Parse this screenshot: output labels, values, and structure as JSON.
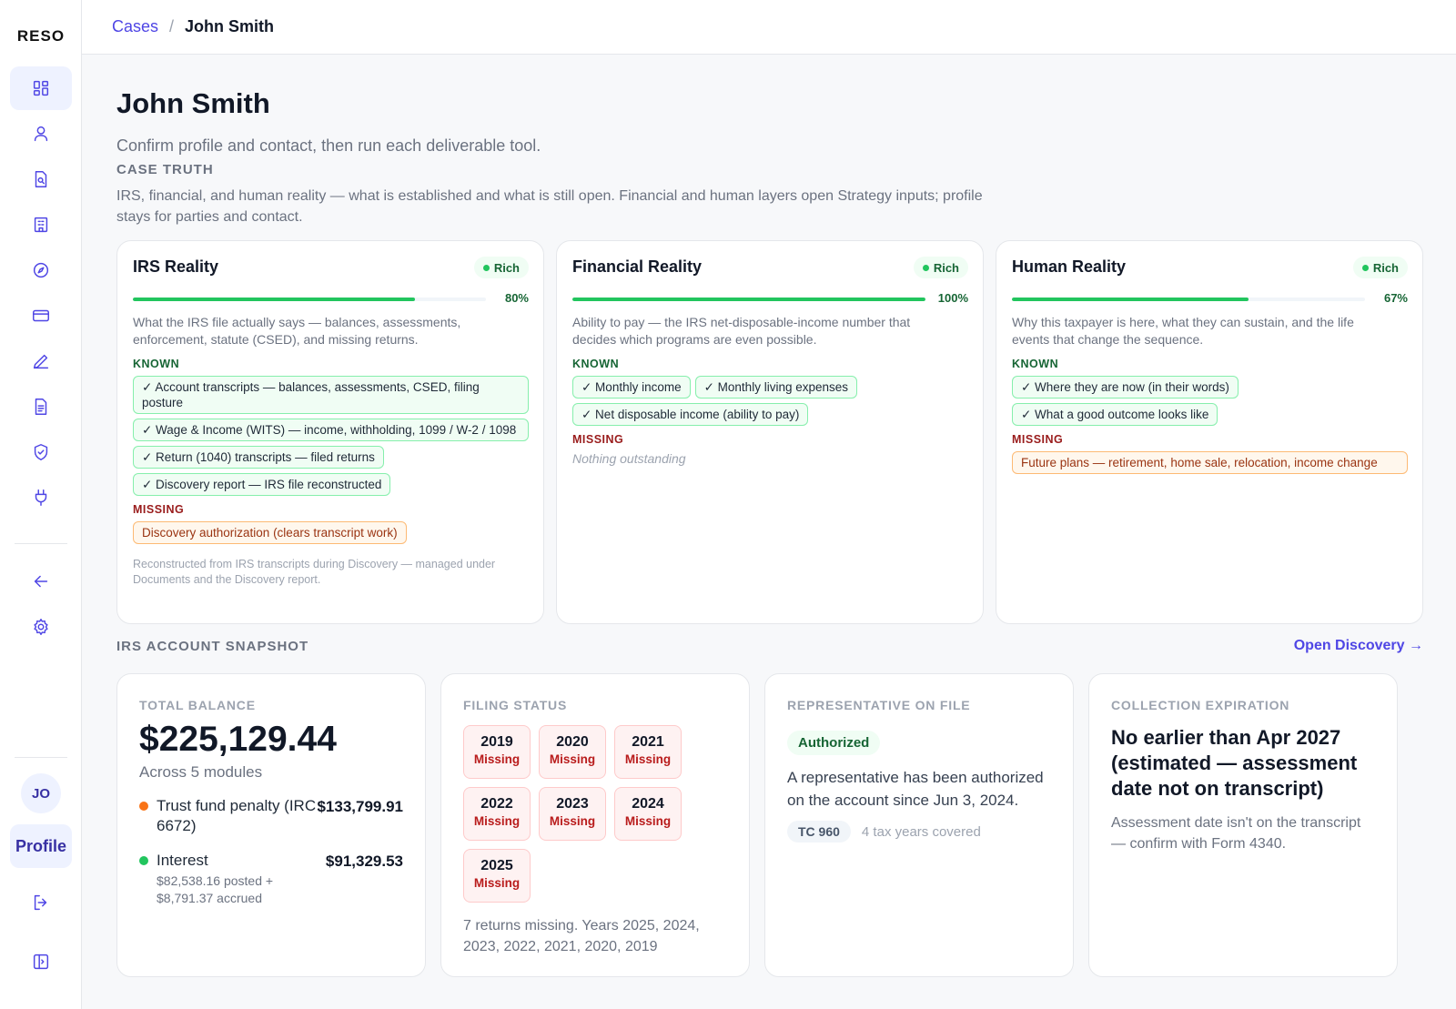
{
  "app": {
    "logo": "RESO"
  },
  "sidebar": {
    "nav": [
      {
        "icon": "dashboard-icon"
      },
      {
        "icon": "user-icon"
      },
      {
        "icon": "document-search-icon"
      },
      {
        "icon": "building-icon"
      },
      {
        "icon": "compass-icon"
      },
      {
        "icon": "credit-card-icon"
      },
      {
        "icon": "pen-icon"
      },
      {
        "icon": "document-text-icon"
      },
      {
        "icon": "shield-check-icon"
      },
      {
        "icon": "plug-icon"
      },
      {
        "icon": "arrow-left-icon"
      },
      {
        "icon": "settings-icon"
      }
    ],
    "avatar_initials": "JO",
    "profile_label": "Profile"
  },
  "breadcrumb": {
    "parent": "Cases",
    "separator": "/",
    "current": "John Smith"
  },
  "page": {
    "title": "John Smith",
    "subtitle": "Confirm profile and contact, then run each deliverable tool.",
    "case_truth_label": "CASE TRUTH",
    "case_truth_desc": "IRS, financial, and human reality — what is established and what is still open. Financial and human layers open Strategy inputs; profile stays for parties and contact."
  },
  "reality": {
    "known_label": "KNOWN",
    "missing_label": "MISSING",
    "irs": {
      "title": "IRS Reality",
      "badge": "Rich",
      "progress": 0.8,
      "pct_label": "80%",
      "desc": "What the IRS file actually says — balances, assessments, enforcement, statute (CSED), and missing returns.",
      "known": [
        "✓ Account transcripts — balances, assessments, CSED, filing posture",
        "✓ Wage & Income (WITS) — income, withholding, 1099 / W-2 / 1098",
        "✓ Return (1040) transcripts — filed returns",
        "✓ Discovery report — IRS file reconstructed"
      ],
      "missing": [
        "Discovery authorization (clears transcript work)"
      ],
      "footnote": "Reconstructed from IRS transcripts during Discovery — managed under Documents and the Discovery report."
    },
    "financial": {
      "title": "Financial Reality",
      "badge": "Rich",
      "progress": 1.0,
      "pct_label": "100%",
      "desc": "Ability to pay — the IRS net-disposable-income number that decides which programs are even possible.",
      "known": [
        "✓ Monthly income",
        "✓ Monthly living expenses",
        "✓ Net disposable income (ability to pay)"
      ],
      "missing_empty": "Nothing outstanding"
    },
    "human": {
      "title": "Human Reality",
      "badge": "Rich",
      "progress": 0.67,
      "pct_label": "67%",
      "desc": "Why this taxpayer is here, what they can sustain, and the life events that change the sequence.",
      "known": [
        "✓ Where they are now (in their words)",
        "✓ What a good outcome looks like"
      ],
      "missing": [
        "Future plans — retirement, home sale, relocation, income change"
      ]
    }
  },
  "snapshot": {
    "label": "IRS ACCOUNT SNAPSHOT",
    "open_discovery": "Open Discovery →",
    "balance": {
      "label": "TOTAL BALANCE",
      "total": "$225,129.44",
      "sub": "Across 5 modules",
      "rows": [
        {
          "name": "Trust fund penalty (IRC 6672)",
          "amount": "$133,799.91",
          "color": "#f97316",
          "note": ""
        },
        {
          "name": "Interest",
          "amount": "$91,329.53",
          "color": "#22c55e",
          "note": "$82,538.16 posted + $8,791.37 accrued"
        }
      ]
    },
    "filing": {
      "label": "FILING STATUS",
      "years": [
        {
          "year": "2019",
          "status": "Missing"
        },
        {
          "year": "2020",
          "status": "Missing"
        },
        {
          "year": "2021",
          "status": "Missing"
        },
        {
          "year": "2022",
          "status": "Missing"
        },
        {
          "year": "2023",
          "status": "Missing"
        },
        {
          "year": "2024",
          "status": "Missing"
        },
        {
          "year": "2025",
          "status": "Missing"
        }
      ],
      "note": "7 returns missing. Years 2025, 2024, 2023, 2022, 2021, 2020, 2019"
    },
    "rep": {
      "label": "REPRESENTATIVE ON FILE",
      "badge": "Authorized",
      "text": "A representative has been authorized on the account since Jun 3, 2024.",
      "tc": "TC 960",
      "years": "4 tax years covered"
    },
    "csed": {
      "label": "COLLECTION EXPIRATION",
      "headline": "No earlier than Apr 2027 (estimated — assessment date not on transcript)",
      "note": "Assessment date isn't on the transcript — confirm with Form 4340."
    }
  }
}
